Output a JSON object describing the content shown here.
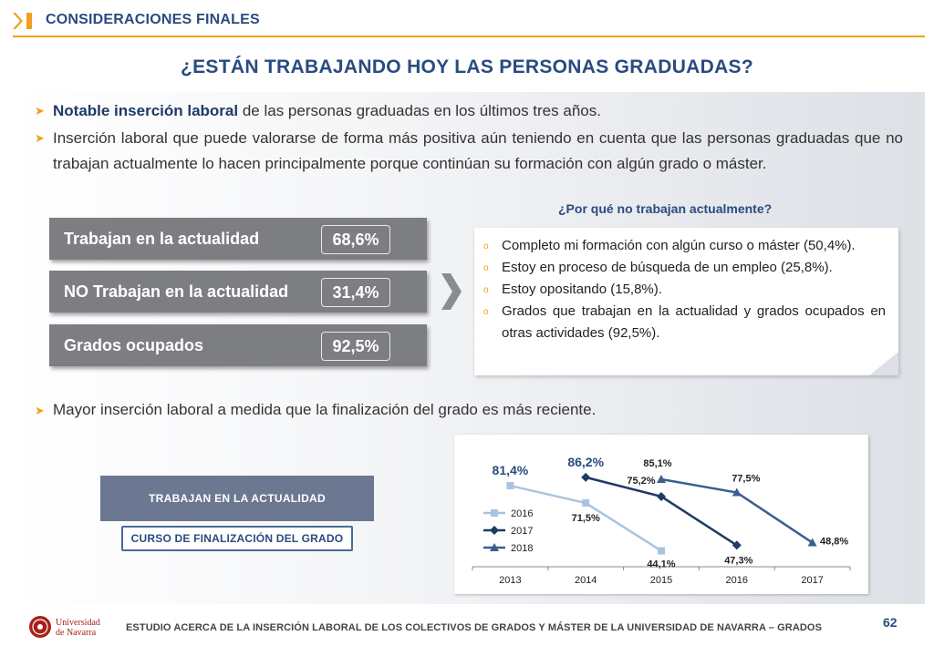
{
  "header": {
    "section_title": "CONSIDERACIONES FINALES"
  },
  "main_title": "¿ESTÁN TRABAJANDO HOY LAS PERSONAS GRADUADAS?",
  "bullets": [
    {
      "bold": "Notable inserción laboral",
      "text": " de las personas graduadas en los últimos tres años."
    },
    {
      "bold": "",
      "text": "Inserción laboral que puede valorarse de forma más positiva aún teniendo en cuenta que las personas graduadas que no trabajan actualmente lo hacen principalmente porque continúan su formación con algún grado o máster."
    }
  ],
  "stats": [
    {
      "label": "Trabajan en la actualidad",
      "value": "68,6%"
    },
    {
      "label": "NO Trabajan en la actualidad",
      "value": "31,4%"
    },
    {
      "label": "Grados ocupados",
      "value": "92,5%"
    }
  ],
  "why": {
    "title": "¿Por qué no trabajan actualmente?",
    "items": [
      "Completo mi formación con algún curso o máster (50,4%).",
      "Estoy en proceso de búsqueda de un empleo  (25,8%).",
      "Estoy opositando (15,8%).",
      "Grados que trabajan en la actualidad y grados ocupados en otras actividades (92,5%)."
    ]
  },
  "bullet3": "Mayor inserción laboral a medida que la finalización del grado es más reciente.",
  "tags": {
    "dark": "TRABAJAN EN LA ACTUALIDAD",
    "light": "CURSO DE FINALIZACIÓN DEL GRADO"
  },
  "chart_data": {
    "type": "line",
    "x": [
      "2013",
      "2014",
      "2015",
      "2016",
      "2017"
    ],
    "series": [
      {
        "name": "2016",
        "values": [
          81.4,
          71.5,
          44.1,
          null,
          null
        ],
        "labels": [
          "81,4%",
          "71,5%",
          "44,1%",
          "",
          ""
        ],
        "color": "#a9c4e0",
        "marker": "square"
      },
      {
        "name": "2017",
        "values": [
          null,
          86.2,
          75.2,
          47.3,
          null
        ],
        "labels": [
          "",
          "86,2%",
          "75,2%",
          "47,3%",
          ""
        ],
        "color": "#1e3a66",
        "marker": "diamond"
      },
      {
        "name": "2018",
        "values": [
          null,
          null,
          85.1,
          77.5,
          48.8
        ],
        "labels": [
          "",
          "",
          "85,1%",
          "77,5%",
          "48,8%"
        ],
        "color": "#3a5f8f",
        "marker": "triangle"
      }
    ],
    "ylim": [
      35,
      95
    ],
    "legend": "left",
    "grid": false
  },
  "footer": {
    "logo_text": "Universidad de Navarra",
    "text": "ESTUDIO ACERCA DE LA INSERCIÓN LABORAL DE LOS COLECTIVOS DE GRADOS Y MÁSTER DE LA UNIVERSIDAD DE NAVARRA – GRADOS",
    "page": "62"
  },
  "colors": {
    "accent": "#f0a020",
    "primary": "#2a4b80",
    "stat_bg": "#7d7e82"
  }
}
